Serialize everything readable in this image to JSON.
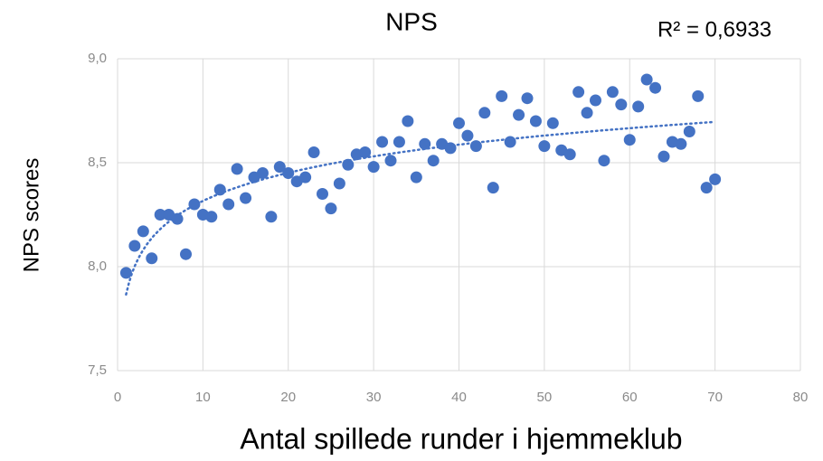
{
  "chart_data": {
    "type": "scatter",
    "title": "NPS",
    "annotation": "R² = 0,6933",
    "x_label": "Antal spillede runder i hjemmeklub",
    "y_label": "NPS scores",
    "color": "#4472c4",
    "trendline": {
      "type": "logarithmic",
      "color": "#4472c4"
    },
    "grid": true,
    "x": [
      1,
      2,
      3,
      4,
      5,
      6,
      7,
      8,
      9,
      10,
      11,
      12,
      13,
      14,
      15,
      16,
      17,
      18,
      19,
      20,
      21,
      22,
      23,
      24,
      25,
      26,
      27,
      28,
      29,
      30,
      31,
      32,
      33,
      34,
      35,
      36,
      37,
      38,
      39,
      40,
      41,
      42,
      43,
      44,
      45,
      46,
      47,
      48,
      49,
      50,
      51,
      52,
      53,
      54,
      55,
      56,
      57,
      58,
      59,
      60,
      61,
      62,
      63,
      64,
      65,
      66,
      67,
      68,
      69,
      70
    ],
    "values": [
      7.97,
      8.1,
      8.17,
      8.04,
      8.25,
      8.25,
      8.23,
      8.06,
      8.3,
      8.25,
      8.24,
      8.37,
      8.3,
      8.47,
      8.33,
      8.43,
      8.45,
      8.24,
      8.48,
      8.45,
      8.41,
      8.43,
      8.55,
      8.35,
      8.28,
      8.4,
      8.49,
      8.54,
      8.55,
      8.48,
      8.6,
      8.51,
      8.6,
      8.7,
      8.43,
      8.59,
      8.51,
      8.59,
      8.57,
      8.69,
      8.63,
      8.58,
      8.74,
      8.38,
      8.82,
      8.6,
      8.73,
      8.81,
      8.7,
      8.58,
      8.69,
      8.56,
      8.54,
      8.84,
      8.74,
      8.8,
      8.51,
      8.84,
      8.78,
      8.61,
      8.77,
      8.9,
      8.86,
      8.53,
      8.6,
      8.59,
      8.65,
      8.82,
      8.38,
      8.42
    ],
    "xlim": [
      0,
      80
    ],
    "xticks": [
      0,
      10,
      20,
      30,
      40,
      50,
      60,
      70,
      80
    ],
    "ylim": [
      7.5,
      9.0
    ],
    "yticks": [
      {
        "value": 7.5,
        "label": "7,5"
      },
      {
        "value": 8.0,
        "label": "8,0"
      },
      {
        "value": 8.5,
        "label": "8,5"
      },
      {
        "value": 9.0,
        "label": "9,0"
      }
    ]
  }
}
